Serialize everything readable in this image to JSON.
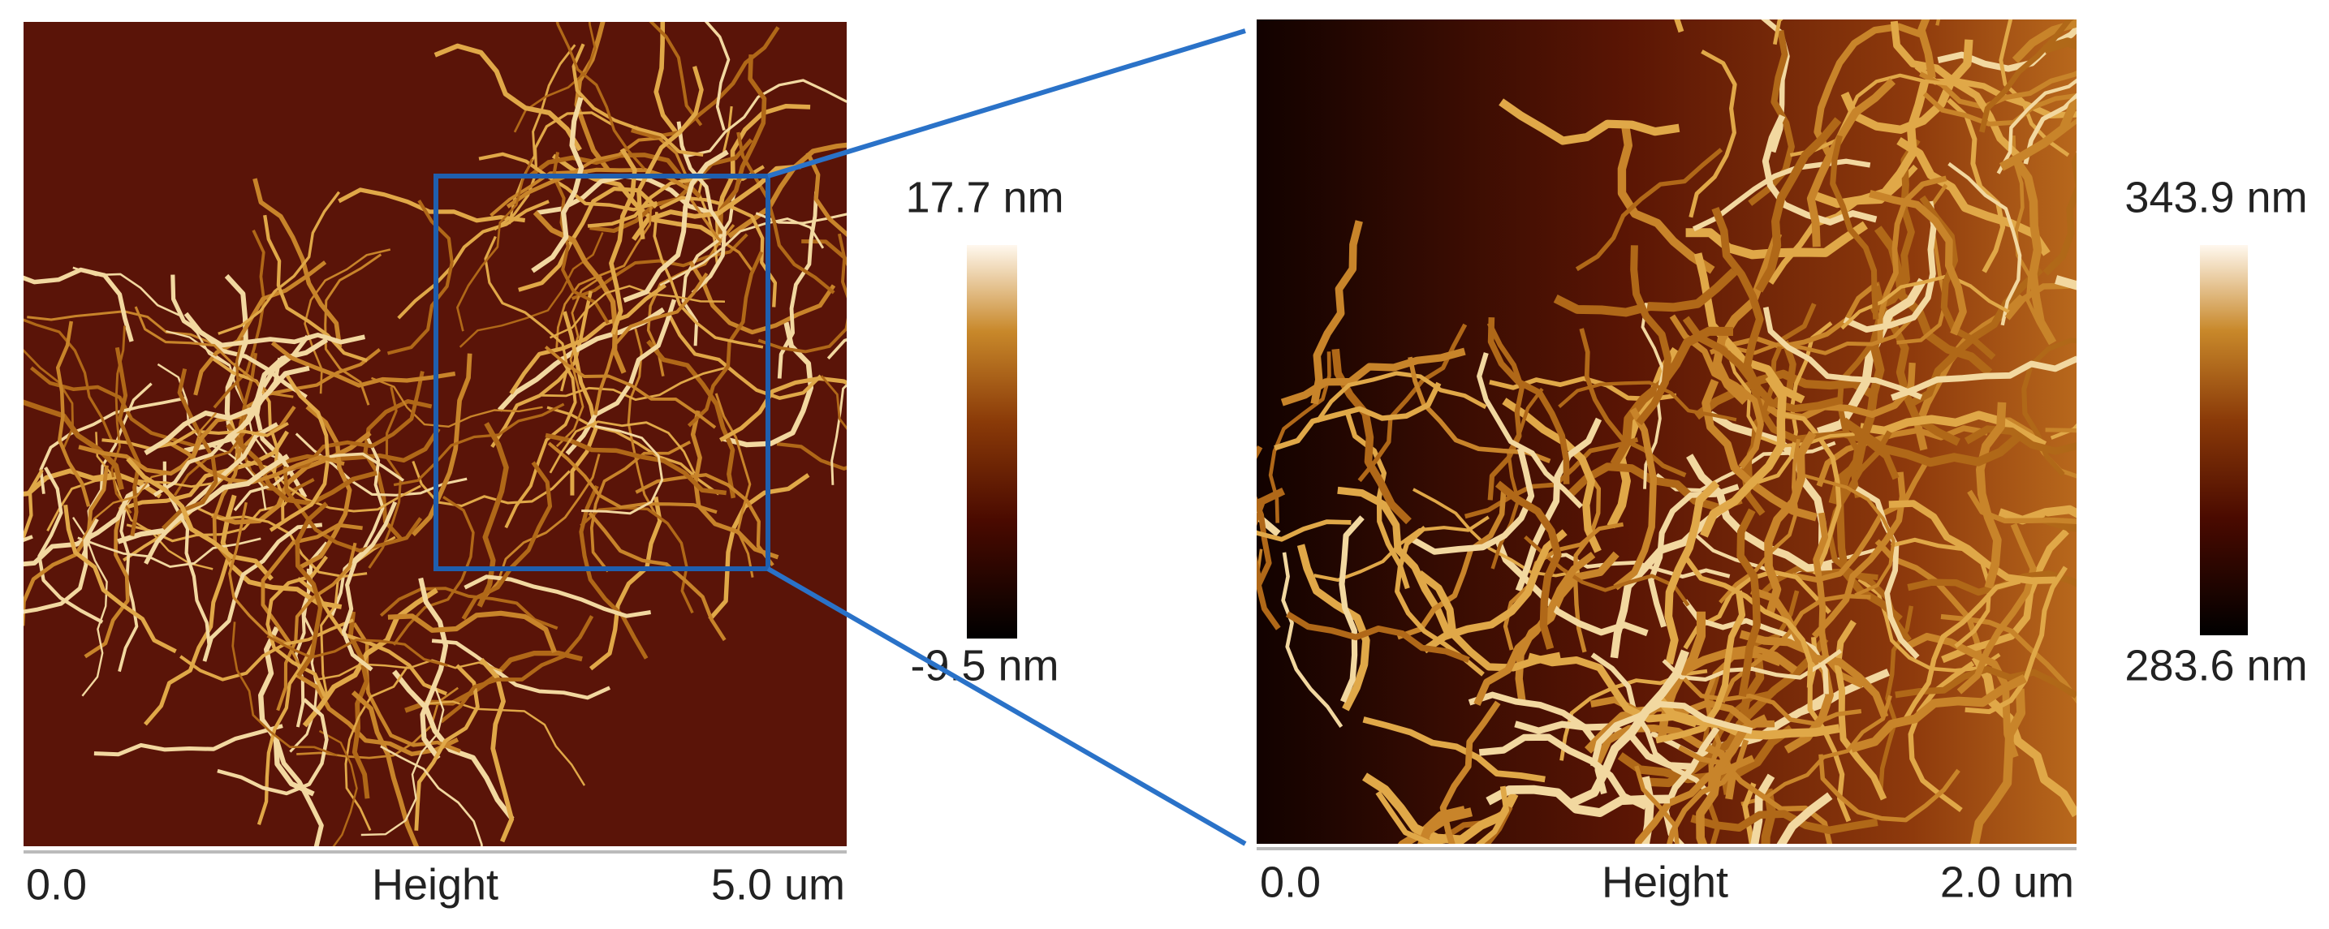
{
  "panels": [
    {
      "scale_start": "0.0",
      "channel": "Height",
      "scale_end": "5.0 um",
      "colorbar_max": "17.7 nm",
      "colorbar_min": "-9.5 nm"
    },
    {
      "scale_start": "0.0",
      "channel": "Height",
      "scale_end": "2.0 um",
      "colorbar_max": "343.9 nm",
      "colorbar_min": "283.6 nm"
    }
  ]
}
